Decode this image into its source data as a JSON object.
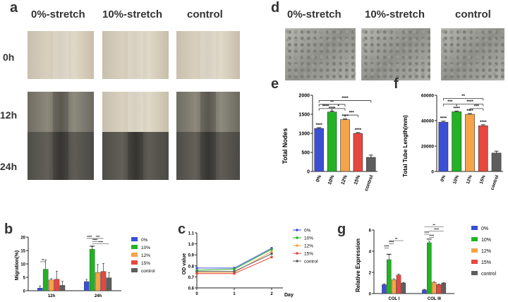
{
  "panels": {
    "a": "a",
    "b": "b",
    "c": "c",
    "d": "d",
    "e": "e",
    "f": "f",
    "g": "g"
  },
  "panel_a": {
    "columns": [
      "0%-stretch",
      "10%-stretch",
      "control"
    ],
    "rows": [
      "0h",
      "12h",
      "24h"
    ]
  },
  "panel_d": {
    "columns": [
      "0%-stretch",
      "10%-stretch",
      "control"
    ]
  },
  "colors": {
    "0%": "#3a4fd6",
    "10%": "#22b324",
    "12%": "#f5a447",
    "15%": "#e8473f",
    "control": "#5e5e5e"
  },
  "chart_data": [
    {
      "id": "b",
      "type": "bar",
      "ylabel": "Migration(%)",
      "categories": [
        "12h",
        "24h"
      ],
      "ylim": [
        0,
        20
      ],
      "yticks": [
        "0",
        "5",
        "10",
        "15",
        "20"
      ],
      "series": [
        {
          "name": "0%",
          "values": [
            1.0,
            3.4
          ],
          "errors": [
            0.8,
            0.8
          ]
        },
        {
          "name": "10%",
          "values": [
            8.0,
            15.5
          ],
          "errors": [
            3.5,
            1.0
          ]
        },
        {
          "name": "12%",
          "values": [
            4.0,
            6.8
          ],
          "errors": [
            0.5,
            3.0
          ]
        },
        {
          "name": "15%",
          "values": [
            4.3,
            7.2
          ],
          "errors": [
            3.0,
            3.0
          ]
        },
        {
          "name": "control",
          "values": [
            2.0,
            4.8
          ],
          "errors": [
            1.5,
            2.0
          ]
        }
      ],
      "annotations": [
        "**",
        "****",
        "****",
        "****",
        "***",
        "****"
      ]
    },
    {
      "id": "c",
      "type": "line",
      "ylabel": "OD value",
      "xlabel": "Day",
      "x": [
        0,
        1,
        2
      ],
      "ylim": [
        0.6,
        1.1
      ],
      "yticks": [
        "0.6",
        "0.7",
        "0.8",
        "0.9",
        "1.0",
        "1.1"
      ],
      "series": [
        {
          "name": "0%",
          "values": [
            0.78,
            0.78,
            0.96
          ]
        },
        {
          "name": "10%",
          "values": [
            0.76,
            0.77,
            0.95
          ]
        },
        {
          "name": "12%",
          "values": [
            0.74,
            0.74,
            0.93
          ]
        },
        {
          "name": "15%",
          "values": [
            0.73,
            0.73,
            0.88
          ]
        },
        {
          "name": "control",
          "values": [
            0.75,
            0.75,
            0.91
          ]
        }
      ]
    },
    {
      "id": "e",
      "type": "bar",
      "ylabel": "Total Nodes",
      "categories": [
        "0%",
        "10%",
        "12%",
        "15%",
        "control"
      ],
      "values": [
        1130,
        1560,
        1360,
        1000,
        370
      ],
      "errors": [
        20,
        25,
        20,
        20,
        60
      ],
      "ylim": [
        0,
        2000
      ],
      "yticks": [
        "0",
        "500",
        "1000",
        "1500",
        "2000"
      ],
      "annotations": [
        "****",
        "****",
        "****",
        "****",
        "**",
        "****",
        "*",
        "***",
        "****"
      ]
    },
    {
      "id": "f",
      "type": "bar",
      "ylabel": "Total Tube Length(mm)",
      "categories": [
        "0%",
        "10%",
        "12%",
        "15%",
        "control"
      ],
      "values": [
        38800,
        47000,
        45000,
        36000,
        14500
      ],
      "errors": [
        800,
        600,
        600,
        800,
        1500
      ],
      "ylim": [
        0,
        60000
      ],
      "yticks": [
        "0",
        "20000",
        "40000",
        "60000"
      ],
      "annotations": [
        "****",
        "****",
        "****",
        "****",
        "**",
        "***",
        "****",
        "***"
      ]
    },
    {
      "id": "g",
      "type": "bar",
      "ylabel": "Relative Expression",
      "categories": [
        "COL I",
        "COL III"
      ],
      "ylim": [
        0,
        6
      ],
      "yticks": [
        "0",
        "2",
        "4",
        "6"
      ],
      "series": [
        {
          "name": "0%",
          "values": [
            0.85,
            0.35
          ],
          "errors": [
            0.08,
            0.05
          ]
        },
        {
          "name": "10%",
          "values": [
            3.2,
            4.8
          ],
          "errors": [
            0.5,
            0.15
          ]
        },
        {
          "name": "12%",
          "values": [
            1.3,
            1.05
          ],
          "errors": [
            0.1,
            0.08
          ]
        },
        {
          "name": "15%",
          "values": [
            1.75,
            0.85
          ],
          "errors": [
            0.1,
            0.05
          ]
        },
        {
          "name": "control",
          "values": [
            1.0,
            1.0
          ],
          "errors": [
            0.05,
            0.03
          ]
        }
      ],
      "annotations": [
        "****",
        "****",
        "****",
        "**",
        "****",
        "****",
        "****",
        "****",
        "****",
        "**"
      ]
    }
  ]
}
